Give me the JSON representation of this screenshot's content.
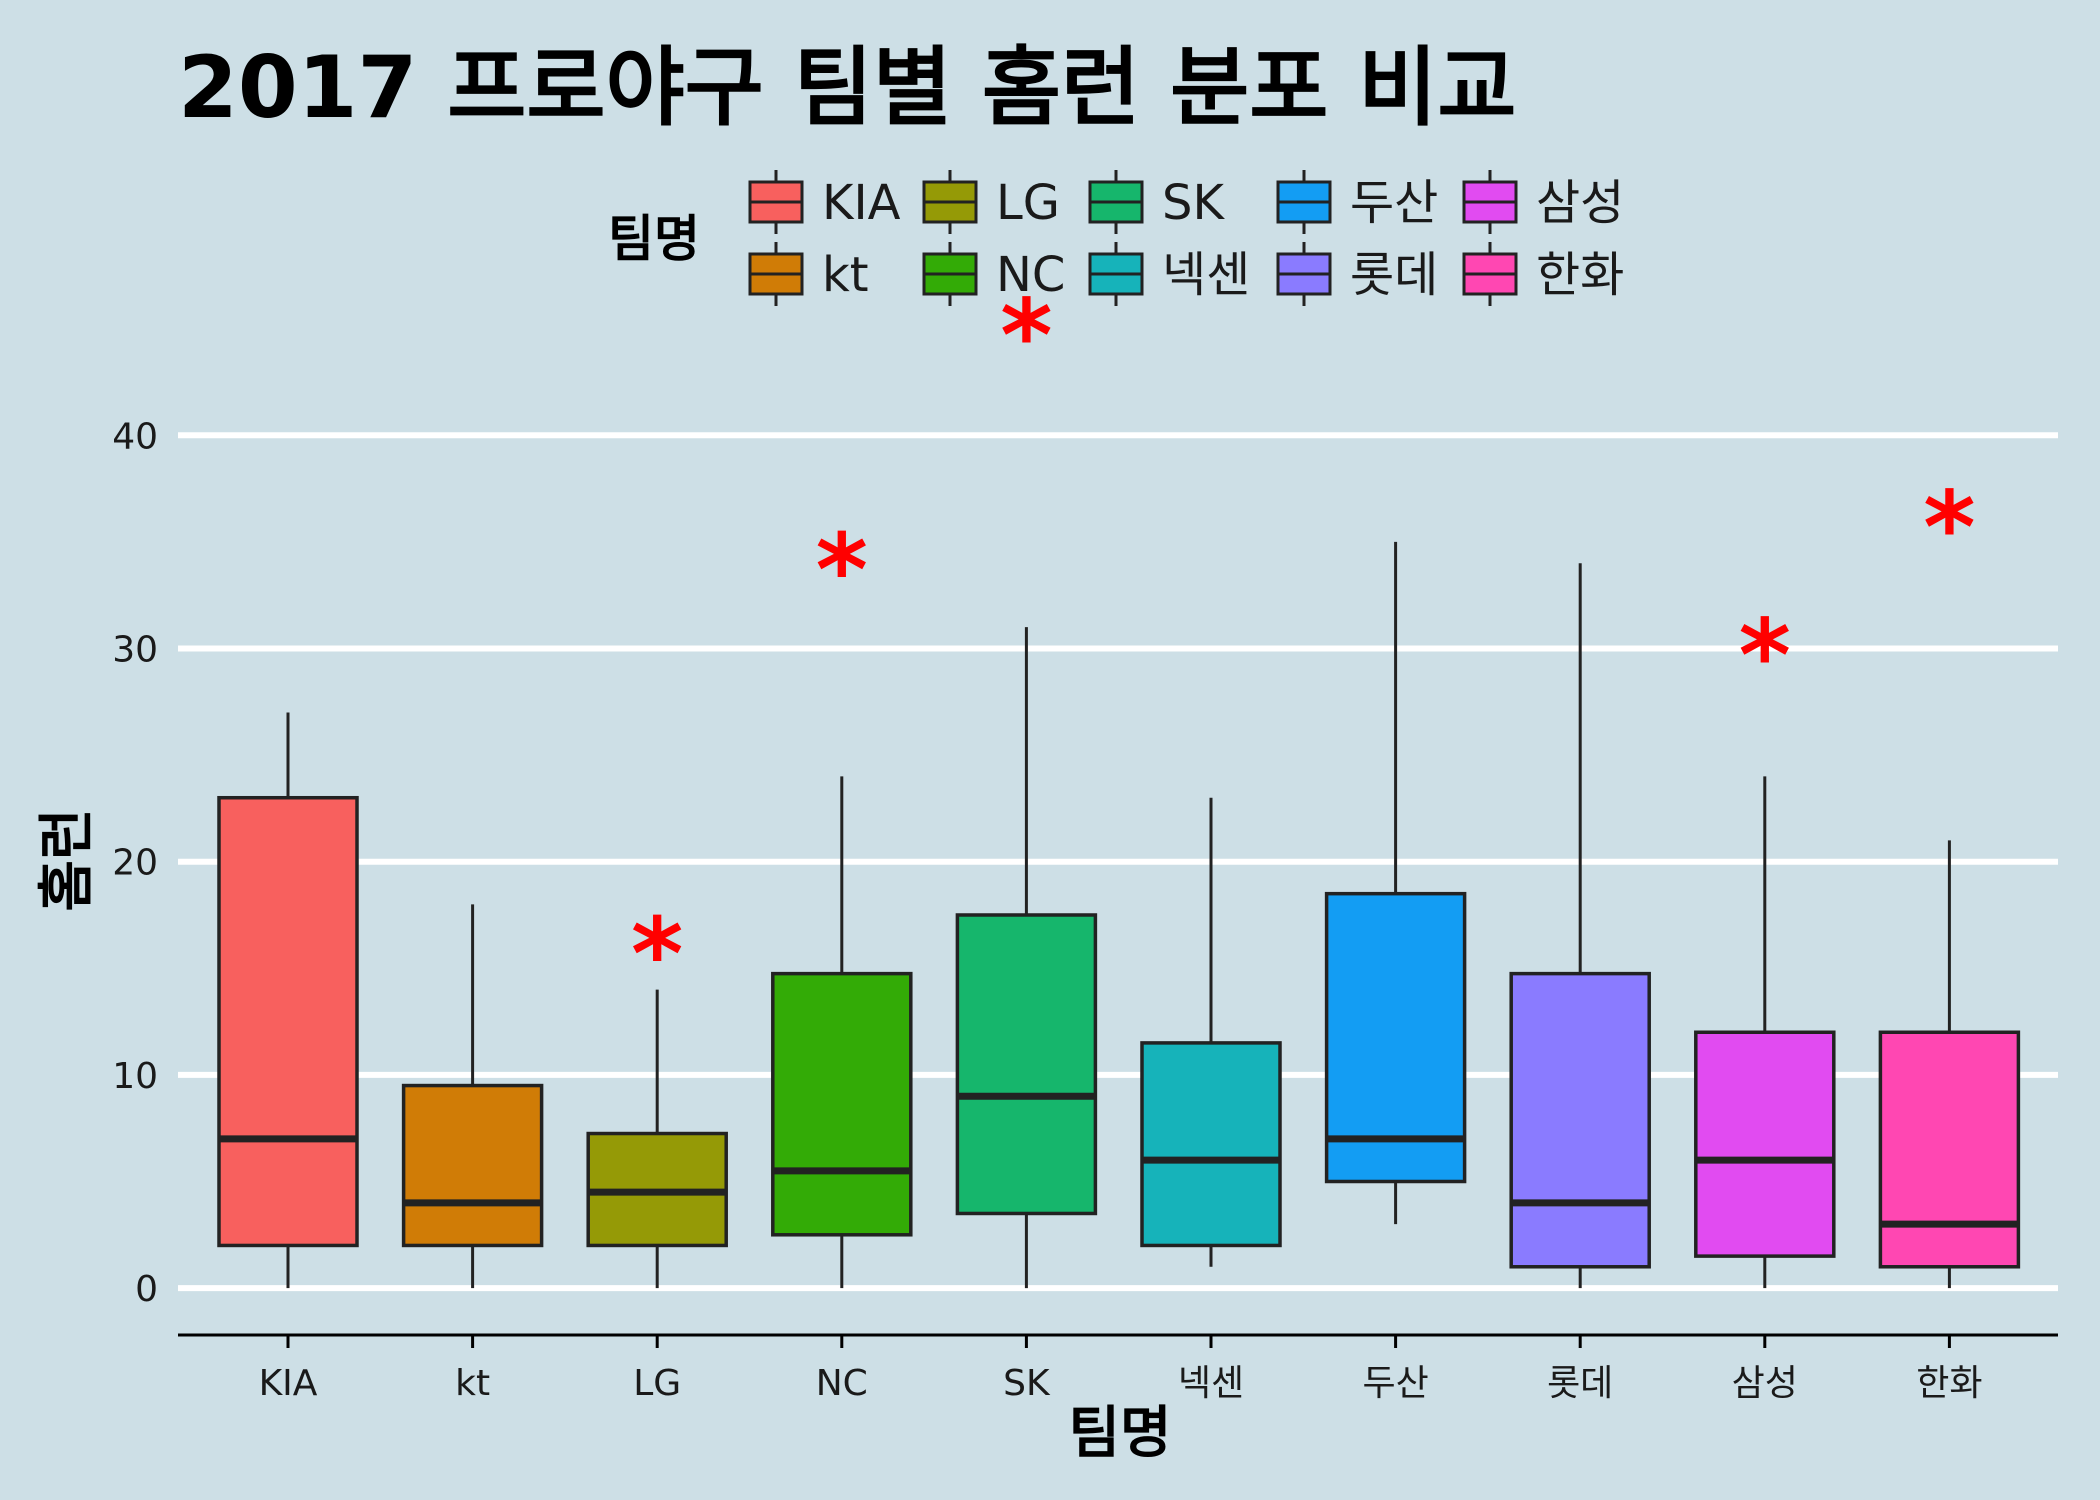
{
  "chart_data": {
    "type": "boxplot",
    "title": "2017 프로야구 팀별 홈런 분포 비교",
    "xlabel": "팀명",
    "ylabel": "홈런",
    "ylim": [
      -2.2,
      44
    ],
    "yticks": [
      0,
      10,
      20,
      30,
      40
    ],
    "grid": "horizontal",
    "outlier_marker": "*",
    "outlier_color": "#ff0000",
    "legend": {
      "title": "팀명",
      "position": "top",
      "layout": "2 rows x 5 columns"
    },
    "categories": [
      "KIA",
      "kt",
      "LG",
      "NC",
      "SK",
      "넥센",
      "두산",
      "롯데",
      "삼성",
      "한화"
    ],
    "series": [
      {
        "name": "KIA",
        "color": "#f8605e",
        "whisker_low": 0,
        "q1": 2,
        "median": 7,
        "q3": 23,
        "whisker_high": 27,
        "outlier_symbol": "*",
        "outliers": []
      },
      {
        "name": "kt",
        "color": "#d07c06",
        "whisker_low": 0,
        "q1": 2,
        "median": 4,
        "q3": 9.5,
        "whisker_high": 18,
        "outlier_symbol": "*",
        "outliers": []
      },
      {
        "name": "LG",
        "color": "#959a06",
        "whisker_low": 0,
        "q1": 2,
        "median": 4.5,
        "q3": 7.25,
        "whisker_high": 14,
        "outlier_symbol": "*",
        "outliers": [
          16
        ]
      },
      {
        "name": "NC",
        "color": "#33ab06",
        "whisker_low": 0,
        "q1": 2.5,
        "median": 5.5,
        "q3": 14.75,
        "whisker_high": 24,
        "outlier_symbol": "*",
        "outliers": [
          34
        ]
      },
      {
        "name": "SK",
        "color": "#16b66c",
        "whisker_low": 0,
        "q1": 3.5,
        "median": 9,
        "q3": 17.5,
        "whisker_high": 31,
        "outlier_symbol": "*",
        "outliers": [
          45
        ]
      },
      {
        "name": "넥센",
        "color": "#16b3ba",
        "whisker_low": 1,
        "q1": 2,
        "median": 6,
        "q3": 11.5,
        "whisker_high": 23,
        "outlier_symbol": "*",
        "outliers": []
      },
      {
        "name": "두산",
        "color": "#139df3",
        "whisker_low": 3,
        "q1": 5,
        "median": 7,
        "q3": 18.5,
        "whisker_high": 35,
        "outlier_symbol": "*",
        "outliers": []
      },
      {
        "name": "롯데",
        "color": "#8a7bff",
        "whisker_low": 0,
        "q1": 1,
        "median": 4,
        "q3": 14.75,
        "whisker_high": 34,
        "outlier_symbol": "*",
        "outliers": []
      },
      {
        "name": "삼성",
        "color": "#e14bf1",
        "whisker_low": 0,
        "q1": 1.5,
        "median": 6,
        "q3": 12,
        "whisker_high": 24,
        "outlier_symbol": "*",
        "outliers": [
          30
        ]
      },
      {
        "name": "한화",
        "color": "#ff47b2",
        "whisker_low": 0,
        "q1": 1,
        "median": 3,
        "q3": 12,
        "whisker_high": 21,
        "outlier_symbol": "*",
        "outliers": [
          36
        ]
      }
    ]
  }
}
